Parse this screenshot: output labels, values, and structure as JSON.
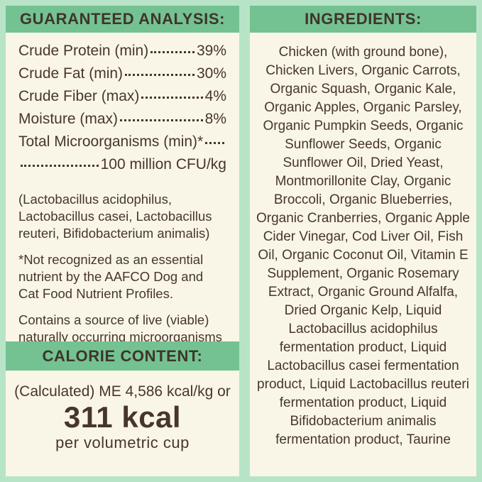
{
  "colors": {
    "background_mint": "#b7e4c7",
    "band_green": "#74c292",
    "panel_cream": "#faf6e7",
    "text_brown": "#47362c"
  },
  "guaranteed_analysis": {
    "title": "GUARANTEED ANALYSIS:",
    "rows": [
      {
        "label": "Crude Protein (min)",
        "value": "39%"
      },
      {
        "label": "Crude Fat (min)",
        "value": "30%"
      },
      {
        "label": "Crude Fiber (max)",
        "value": "4%"
      },
      {
        "label": "Moisture (max)",
        "value": "8%"
      },
      {
        "label": "Total Microorganisms (min)*",
        "value": ""
      },
      {
        "label": "",
        "value": "100 million CFU/kg"
      }
    ],
    "notes": [
      "(Lactobacillus acidophilus, Lactobacillus casei, Lactobacillus reuteri, Bifidobacterium animalis)",
      "*Not recognized as an essential nutrient by the AAFCO Dog and Cat Food Nutrient Profiles.",
      "Contains a source of live (viable) naturally occurring microorganisms"
    ]
  },
  "calorie_content": {
    "title": "CALORIE CONTENT:",
    "line1": "(Calculated) ME 4,586 kcal/kg or",
    "value": "311 kcal",
    "line2": "per volumetric cup"
  },
  "ingredients": {
    "title": "INGREDIENTS:",
    "text": "Chicken (with ground bone), Chicken Livers, Organic Carrots, Organic Squash, Organic Kale, Organic Apples, Organic Parsley, Organic Pumpkin Seeds, Organic Sunflower Seeds, Organic Sunflower Oil, Dried Yeast, Montmorillonite Clay, Organic Broccoli, Organic Blueberries, Organic Cranberries, Organic Apple Cider Vinegar, Cod Liver Oil, Fish Oil, Organic Coconut Oil, Vitamin E Supplement, Organic Rosemary Extract, Organic Ground Alfalfa, Dried Organic Kelp, Liquid Lactobacillus acidophilus fermentation product, Liquid Lactobacillus casei fermentation product, Liquid Lactobacillus reuteri fermentation product, Liquid Bifidobacterium animalis fermentation product, Taurine"
  }
}
